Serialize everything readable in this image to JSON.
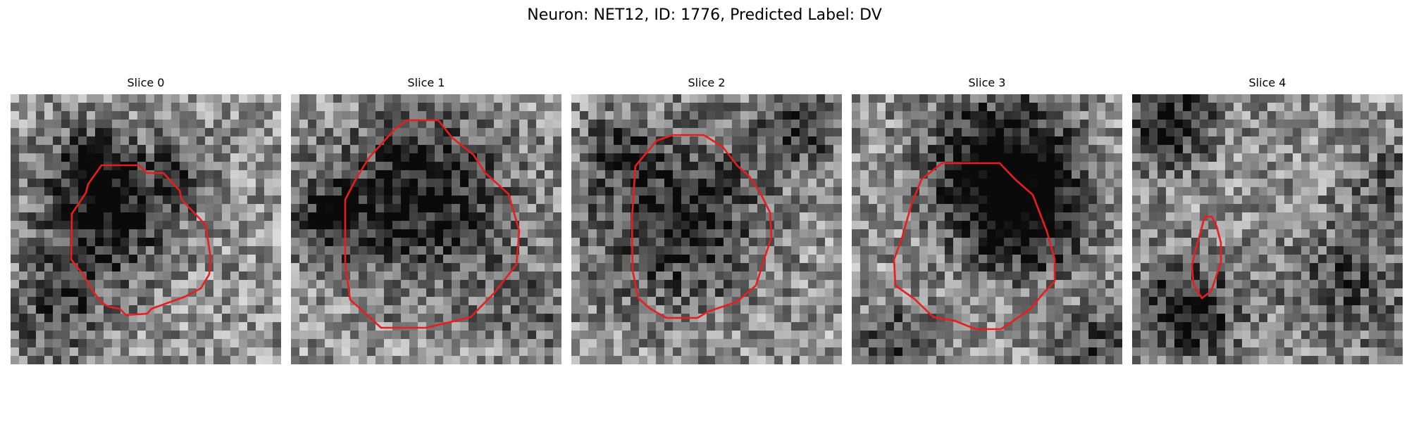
{
  "figure": {
    "title": "Neuron: NET12, ID: 1776, Predicted Label: DV",
    "contour_color": "#e81e1e"
  },
  "slices": [
    {
      "title": "Slice 0"
    },
    {
      "title": "Slice 1"
    },
    {
      "title": "Slice 2"
    },
    {
      "title": "Slice 3"
    },
    {
      "title": "Slice 4"
    }
  ]
}
